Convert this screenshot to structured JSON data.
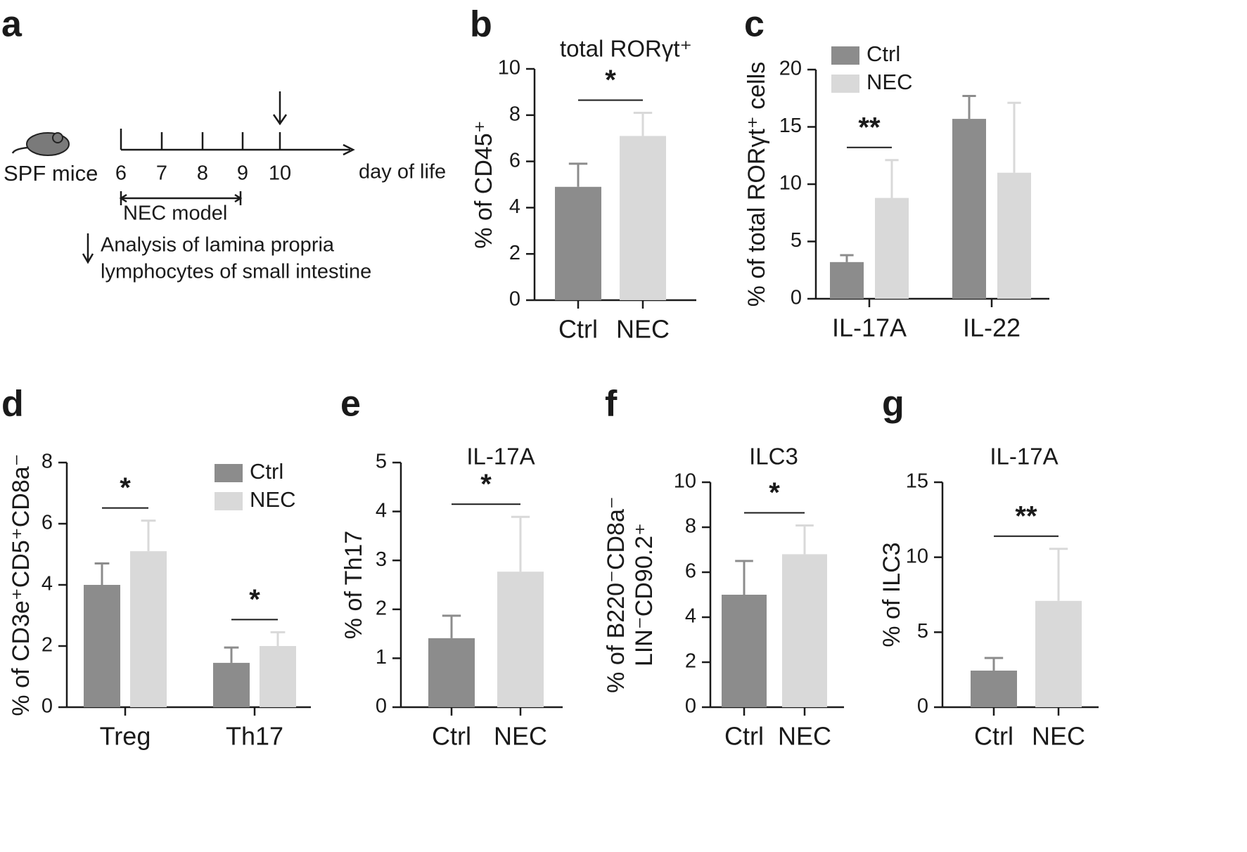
{
  "diagram": {
    "label": "a",
    "subject": "SPF mice",
    "days": [
      "6",
      "7",
      "8",
      "9",
      "10"
    ],
    "axis_label": "day of life",
    "model": "NEC model",
    "analysis": [
      "Analysis of lamina propria",
      "lymphocytes of small intestine"
    ]
  },
  "chart_data": [
    {
      "type": "bar",
      "label": "b",
      "title": "total RORγt⁺",
      "ylabel": [
        "% of CD45⁺"
      ],
      "categories": [
        "Ctrl",
        "NEC"
      ],
      "values": [
        4.9,
        7.1
      ],
      "errors": [
        1.0,
        1.0
      ],
      "colors": [
        "#8c8c8c",
        "#d9d9d9"
      ],
      "ylim": [
        0,
        10
      ],
      "yticks": [
        0,
        2,
        4,
        6,
        8,
        10
      ],
      "significance": "*"
    },
    {
      "type": "bar",
      "label": "c",
      "ylabel": [
        "% of total RORγt⁺ cells"
      ],
      "categories": [
        "IL-17A",
        "IL-22"
      ],
      "series": [
        {
          "name": "Ctrl",
          "color": "#8c8c8c",
          "values": [
            3.2,
            15.7
          ],
          "errors": [
            0.6,
            2.0
          ]
        },
        {
          "name": "NEC",
          "color": "#d9d9d9",
          "values": [
            8.8,
            11.0
          ],
          "errors": [
            3.3,
            6.1
          ]
        }
      ],
      "ylim": [
        0,
        20
      ],
      "yticks": [
        0,
        5,
        10,
        15,
        20
      ],
      "significance": [
        "**",
        null
      ],
      "legend": "top-left"
    },
    {
      "type": "bar",
      "label": "d",
      "ylabel": [
        "% of CD3e⁺CD5⁺CD8a⁻"
      ],
      "categories": [
        "Treg",
        "Th17"
      ],
      "series": [
        {
          "name": "Ctrl",
          "color": "#8c8c8c",
          "values": [
            4.0,
            1.45
          ],
          "errors": [
            0.7,
            0.5
          ]
        },
        {
          "name": "NEC",
          "color": "#d9d9d9",
          "values": [
            5.1,
            2.0
          ],
          "errors": [
            1.0,
            0.45
          ]
        }
      ],
      "ylim": [
        0,
        8
      ],
      "yticks": [
        0,
        2,
        4,
        6,
        8
      ],
      "significance": [
        "*",
        "*"
      ],
      "legend": "top-right"
    },
    {
      "type": "bar",
      "label": "e",
      "title": "IL-17A",
      "ylabel": [
        "% of Th17"
      ],
      "categories": [
        "Ctrl",
        "NEC"
      ],
      "values": [
        1.41,
        2.77
      ],
      "errors": [
        0.46,
        1.12
      ],
      "colors": [
        "#8c8c8c",
        "#d9d9d9"
      ],
      "ylim": [
        0,
        5
      ],
      "yticks": [
        0,
        1,
        2,
        3,
        4,
        5
      ],
      "significance": "*"
    },
    {
      "type": "bar",
      "label": "f",
      "title": "ILC3",
      "ylabel": [
        "% of B220⁻CD8a⁻",
        "LIN⁻CD90.2⁺"
      ],
      "categories": [
        "Ctrl",
        "NEC"
      ],
      "values": [
        5.0,
        6.8
      ],
      "errors": [
        1.5,
        1.28
      ],
      "colors": [
        "#8c8c8c",
        "#d9d9d9"
      ],
      "ylim": [
        0,
        10
      ],
      "yticks": [
        0,
        2,
        4,
        6,
        8,
        10
      ],
      "significance": "*"
    },
    {
      "type": "bar",
      "label": "g",
      "title": "IL-17A",
      "ylabel": [
        "% of ILC3"
      ],
      "categories": [
        "Ctrl",
        "NEC"
      ],
      "values": [
        2.44,
        7.09
      ],
      "errors": [
        0.84,
        3.47
      ],
      "colors": [
        "#8c8c8c",
        "#d9d9d9"
      ],
      "ylim": [
        0,
        15
      ],
      "yticks": [
        0,
        5,
        10,
        15
      ],
      "significance": "**"
    }
  ]
}
